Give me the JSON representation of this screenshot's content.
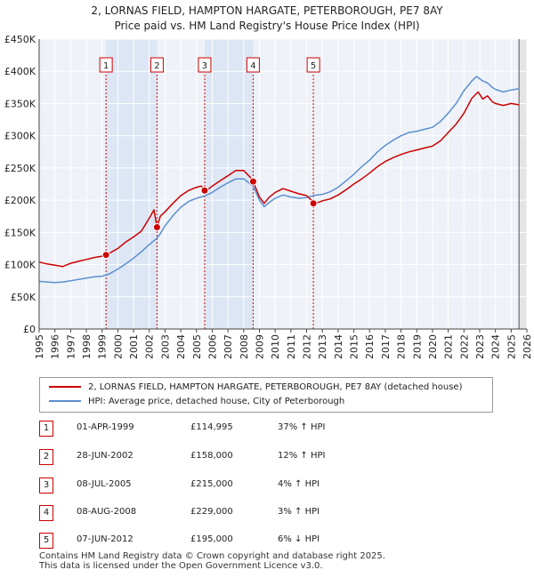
{
  "title": {
    "line1": "2, LORNAS FIELD, HAMPTON HARGATE, PETERBOROUGH, PE7 8AY",
    "line2": "Price paid vs. HM Land Registry's House Price Index (HPI)"
  },
  "chart_data": {
    "type": "line",
    "title": "2, LORNAS FIELD, HAMPTON HARGATE, PETERBOROUGH, PE7 8AY — Price paid vs. HM Land Registry's House Price Index (HPI)",
    "xlabel": "",
    "ylabel": "",
    "xlim": [
      1995,
      2026
    ],
    "ylim": [
      0,
      450000
    ],
    "x_ticks": [
      "1995",
      "1996",
      "1997",
      "1998",
      "1999",
      "2000",
      "2001",
      "2002",
      "2003",
      "2004",
      "2005",
      "2006",
      "2007",
      "2008",
      "2009",
      "2010",
      "2011",
      "2012",
      "2013",
      "2014",
      "2015",
      "2016",
      "2017",
      "2018",
      "2019",
      "2020",
      "2021",
      "2022",
      "2023",
      "2024",
      "2025",
      "2026"
    ],
    "y_ticks": [
      {
        "value": 0,
        "label": "£0"
      },
      {
        "value": 50000,
        "label": "£50K"
      },
      {
        "value": 100000,
        "label": "£100K"
      },
      {
        "value": 150000,
        "label": "£150K"
      },
      {
        "value": 200000,
        "label": "£200K"
      },
      {
        "value": 250000,
        "label": "£250K"
      },
      {
        "value": 300000,
        "label": "£300K"
      },
      {
        "value": 350000,
        "label": "£350K"
      },
      {
        "value": 400000,
        "label": "£400K"
      },
      {
        "value": 450000,
        "label": "£450K"
      }
    ],
    "series": [
      {
        "name": "2, LORNAS FIELD, HAMPTON HARGATE, PETERBOROUGH, PE7 8AY (detached house)",
        "color": "#cc0000",
        "points": [
          [
            1995.0,
            104000
          ],
          [
            1995.5,
            101000
          ],
          [
            1996.0,
            99000
          ],
          [
            1996.5,
            97000
          ],
          [
            1997.0,
            102000
          ],
          [
            1997.5,
            105000
          ],
          [
            1998.0,
            108000
          ],
          [
            1998.5,
            111000
          ],
          [
            1999.0,
            113000
          ],
          [
            1999.25,
            114995
          ],
          [
            1999.5,
            118000
          ],
          [
            2000.0,
            125000
          ],
          [
            2000.5,
            135000
          ],
          [
            2001.0,
            143000
          ],
          [
            2001.5,
            152000
          ],
          [
            2002.0,
            172000
          ],
          [
            2002.3,
            185000
          ],
          [
            2002.49,
            158000
          ],
          [
            2002.7,
            175000
          ],
          [
            2003.0,
            182000
          ],
          [
            2003.5,
            195000
          ],
          [
            2004.0,
            207000
          ],
          [
            2004.5,
            215000
          ],
          [
            2005.0,
            220000
          ],
          [
            2005.3,
            222000
          ],
          [
            2005.52,
            215000
          ],
          [
            2005.8,
            218000
          ],
          [
            2006.0,
            222000
          ],
          [
            2006.5,
            230000
          ],
          [
            2007.0,
            238000
          ],
          [
            2007.5,
            246000
          ],
          [
            2008.0,
            246000
          ],
          [
            2008.4,
            236000
          ],
          [
            2008.6,
            229000
          ],
          [
            2009.0,
            205000
          ],
          [
            2009.3,
            195000
          ],
          [
            2009.6,
            204000
          ],
          [
            2010.0,
            212000
          ],
          [
            2010.5,
            218000
          ],
          [
            2011.0,
            214000
          ],
          [
            2011.5,
            210000
          ],
          [
            2012.0,
            207000
          ],
          [
            2012.3,
            200000
          ],
          [
            2012.43,
            195000
          ],
          [
            2012.8,
            197000
          ],
          [
            2013.0,
            199000
          ],
          [
            2013.5,
            202000
          ],
          [
            2014.0,
            208000
          ],
          [
            2014.5,
            216000
          ],
          [
            2015.0,
            225000
          ],
          [
            2015.5,
            233000
          ],
          [
            2016.0,
            242000
          ],
          [
            2016.5,
            252000
          ],
          [
            2017.0,
            260000
          ],
          [
            2017.5,
            266000
          ],
          [
            2018.0,
            271000
          ],
          [
            2018.5,
            275000
          ],
          [
            2019.0,
            278000
          ],
          [
            2019.5,
            281000
          ],
          [
            2020.0,
            284000
          ],
          [
            2020.5,
            292000
          ],
          [
            2021.0,
            305000
          ],
          [
            2021.5,
            318000
          ],
          [
            2022.0,
            335000
          ],
          [
            2022.5,
            358000
          ],
          [
            2022.9,
            368000
          ],
          [
            2023.2,
            357000
          ],
          [
            2023.5,
            362000
          ],
          [
            2023.8,
            353000
          ],
          [
            2024.0,
            350000
          ],
          [
            2024.5,
            347000
          ],
          [
            2025.0,
            350000
          ],
          [
            2025.5,
            348000
          ]
        ]
      },
      {
        "name": "HPI: Average price, detached house, City of Peterborough",
        "color": "#5b8fd0",
        "points": [
          [
            1995.0,
            74000
          ],
          [
            1995.5,
            73000
          ],
          [
            1996.0,
            72000
          ],
          [
            1996.5,
            73000
          ],
          [
            1997.0,
            75000
          ],
          [
            1997.5,
            77000
          ],
          [
            1998.0,
            79000
          ],
          [
            1998.5,
            81000
          ],
          [
            1999.0,
            82000
          ],
          [
            1999.25,
            83800
          ],
          [
            1999.5,
            86000
          ],
          [
            2000.0,
            93000
          ],
          [
            2000.5,
            101000
          ],
          [
            2001.0,
            110000
          ],
          [
            2001.5,
            120000
          ],
          [
            2002.0,
            131000
          ],
          [
            2002.49,
            141000
          ],
          [
            2002.7,
            148000
          ],
          [
            2003.0,
            160000
          ],
          [
            2003.5,
            176000
          ],
          [
            2004.0,
            189000
          ],
          [
            2004.5,
            198000
          ],
          [
            2005.0,
            203000
          ],
          [
            2005.52,
            206700
          ],
          [
            2006.0,
            212000
          ],
          [
            2006.5,
            220000
          ],
          [
            2007.0,
            227000
          ],
          [
            2007.5,
            233000
          ],
          [
            2008.0,
            233000
          ],
          [
            2008.6,
            222000
          ],
          [
            2009.0,
            200000
          ],
          [
            2009.3,
            190000
          ],
          [
            2009.6,
            196000
          ],
          [
            2010.0,
            203000
          ],
          [
            2010.5,
            208000
          ],
          [
            2011.0,
            205000
          ],
          [
            2011.5,
            203000
          ],
          [
            2012.0,
            204000
          ],
          [
            2012.43,
            207400
          ],
          [
            2013.0,
            209000
          ],
          [
            2013.5,
            213000
          ],
          [
            2014.0,
            220000
          ],
          [
            2014.5,
            230000
          ],
          [
            2015.0,
            240000
          ],
          [
            2015.5,
            252000
          ],
          [
            2016.0,
            262000
          ],
          [
            2016.5,
            275000
          ],
          [
            2017.0,
            285000
          ],
          [
            2017.5,
            293000
          ],
          [
            2018.0,
            300000
          ],
          [
            2018.5,
            305000
          ],
          [
            2019.0,
            307000
          ],
          [
            2019.5,
            310000
          ],
          [
            2020.0,
            313000
          ],
          [
            2020.5,
            322000
          ],
          [
            2021.0,
            335000
          ],
          [
            2021.5,
            350000
          ],
          [
            2022.0,
            370000
          ],
          [
            2022.5,
            385000
          ],
          [
            2022.8,
            392000
          ],
          [
            2023.2,
            385000
          ],
          [
            2023.5,
            382000
          ],
          [
            2023.8,
            375000
          ],
          [
            2024.0,
            372000
          ],
          [
            2024.5,
            368000
          ],
          [
            2025.0,
            371000
          ],
          [
            2025.5,
            373000
          ]
        ]
      }
    ],
    "sale_markers": [
      {
        "label": "1",
        "x": 1999.25,
        "price": 114995
      },
      {
        "label": "2",
        "x": 2002.49,
        "price": 158000
      },
      {
        "label": "3",
        "x": 2005.52,
        "price": 215000
      },
      {
        "label": "4",
        "x": 2008.6,
        "price": 229000
      },
      {
        "label": "5",
        "x": 2012.43,
        "price": 195000
      }
    ],
    "shaded_periods": [
      [
        1999.25,
        2002.49
      ],
      [
        2005.52,
        2008.6
      ]
    ],
    "forecast_start": 2025.5,
    "grid": true
  },
  "legend": {
    "items": [
      {
        "label": "2, LORNAS FIELD, HAMPTON HARGATE, PETERBOROUGH, PE7 8AY (detached house)",
        "color": "#cc0000"
      },
      {
        "label": "HPI: Average price, detached house, City of Peterborough",
        "color": "#5b8fd0"
      }
    ]
  },
  "sales": [
    {
      "num": "1",
      "date": "01-APR-1999",
      "price": "£114,995",
      "hpi": "37% ↑ HPI"
    },
    {
      "num": "2",
      "date": "28-JUN-2002",
      "price": "£158,000",
      "hpi": "12% ↑ HPI"
    },
    {
      "num": "3",
      "date": "08-JUL-2005",
      "price": "£215,000",
      "hpi": "4% ↑ HPI"
    },
    {
      "num": "4",
      "date": "08-AUG-2008",
      "price": "£229,000",
      "hpi": "3% ↑ HPI"
    },
    {
      "num": "5",
      "date": "07-JUN-2012",
      "price": "£195,000",
      "hpi": "6% ↓ HPI"
    }
  ],
  "footer": {
    "line1": "Contains HM Land Registry data © Crown copyright and database right 2025.",
    "line2": "This data is licensed under the Open Government Licence v3.0."
  }
}
